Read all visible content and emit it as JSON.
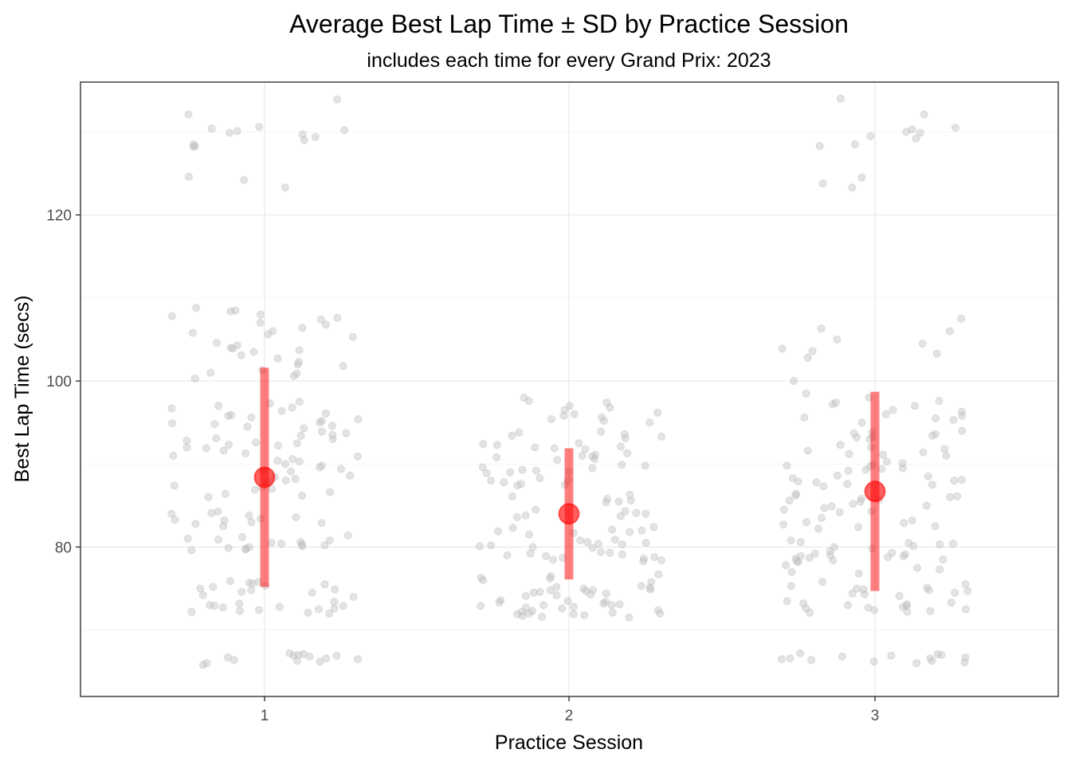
{
  "chart_data": {
    "type": "scatter",
    "title": "Average Best Lap Time ± SD by Practice Session",
    "subtitle": "includes each time for every Grand Prix: 2023",
    "xlabel": "Practice Session",
    "ylabel": "Best Lap Time (secs)",
    "categories": [
      "1",
      "2",
      "3"
    ],
    "y_ticks": [
      "80",
      "100",
      "120"
    ],
    "ylim": [
      62,
      136
    ],
    "grid": true,
    "colors": {
      "points": "#bdbdbd",
      "summary": "#ff0000",
      "panel_border": "#333333"
    },
    "summary": [
      {
        "session": "1",
        "mean": 88.4,
        "sd": 13.2
      },
      {
        "session": "2",
        "mean": 84.0,
        "sd": 7.9
      },
      {
        "session": "3",
        "mean": 86.7,
        "sd": 12.0
      }
    ],
    "observations": [
      {
        "session": "1",
        "laps": [
          66.9,
          66.7,
          67.2,
          66.5,
          67.0,
          66.3,
          65.8,
          66.9,
          67.1,
          66.6,
          66.8,
          66.4,
          66.2,
          66.0,
          72.8,
          72.9,
          73.0,
          72.5,
          72.6,
          72.0,
          72.2,
          72.4,
          72.1,
          73.2,
          72.7,
          72.3,
          72.9,
          73.4,
          75.7,
          74.8,
          75.5,
          74.2,
          75.0,
          75.9,
          74.6,
          75.3,
          74.0,
          75.8,
          74.5,
          75.2,
          75.6,
          74.9,
          80.2,
          79.9,
          80.5,
          80.8,
          80.1,
          79.6,
          80.4,
          81.0,
          80.6,
          79.7,
          80.3,
          80.9,
          81.2,
          79.8,
          80.0,
          81.4,
          83.0,
          83.3,
          84.3,
          82.8,
          83.6,
          84.0,
          83.2,
          82.5,
          83.8,
          84.1,
          82.9,
          83.4,
          87.0,
          86.6,
          88.0,
          86.2,
          87.4,
          88.4,
          86.9,
          87.7,
          88.2,
          86.4,
          87.2,
          88.6,
          86.0,
          87.9,
          89.4,
          90.0,
          91.0,
          89.1,
          90.6,
          91.3,
          89.8,
          90.3,
          91.6,
          89.6,
          90.9,
          89.2,
          91.9,
          90.4,
          92.5,
          93.0,
          92.2,
          93.4,
          92.8,
          93.7,
          92.0,
          93.1,
          92.6,
          93.9,
          92.3,
          93.5,
          94.8,
          95.2,
          94.5,
          95.6,
          94.9,
          95.9,
          94.3,
          96.1,
          95.0,
          95.4,
          96.4,
          94.6,
          95.8,
          96.7,
          97.0,
          97.3,
          96.8,
          97.5,
          100.9,
          101.3,
          100.6,
          101.8,
          102.3,
          100.3,
          102.7,
          101.0,
          102.0,
          103.5,
          104.0,
          103.7,
          104.3,
          103.1,
          104.6,
          103.9,
          105.8,
          106.0,
          105.3,
          106.4,
          105.6,
          106.8,
          107.4,
          108.4,
          107.0,
          108.0,
          108.8,
          107.6,
          108.5,
          107.8,
          123.3,
          124.2,
          124.6,
          128.3,
          128.5,
          128.2,
          129.4,
          129.0,
          129.7,
          130.1,
          130.4,
          130.6,
          130.2,
          129.9,
          132.1,
          133.9
        ]
      },
      {
        "session": "2",
        "laps": [
          71.6,
          72.0,
          71.9,
          72.2,
          71.8,
          72.4,
          71.7,
          72.1,
          72.3,
          71.5,
          72.0,
          71.9,
          73.0,
          72.8,
          73.4,
          73.2,
          72.7,
          73.6,
          73.1,
          72.9,
          73.3,
          73.5,
          72.6,
          73.0,
          74.4,
          74.8,
          75.0,
          74.6,
          74.2,
          75.2,
          74.7,
          74.5,
          74.9,
          75.1,
          74.3,
          74.8,
          75.3,
          74.1,
          76.0,
          76.5,
          76.2,
          75.8,
          76.7,
          76.3,
          78.5,
          78.9,
          79.0,
          78.6,
          79.2,
          78.8,
          79.3,
          78.4,
          79.1,
          78.7,
          79.4,
          78.3,
          80.0,
          80.3,
          80.6,
          79.9,
          80.8,
          80.2,
          80.5,
          80.9,
          80.1,
          80.4,
          81.5,
          81.8,
          82.1,
          82.4,
          81.7,
          82.0,
          82.3,
          81.9,
          83.6,
          84.0,
          84.3,
          83.8,
          84.5,
          84.1,
          83.7,
          85.4,
          85.8,
          86.1,
          85.6,
          86.3,
          85.5,
          87.4,
          87.8,
          88.0,
          87.6,
          88.3,
          87.5,
          88.1,
          88.9,
          89.2,
          89.5,
          89.8,
          89.0,
          89.6,
          89.3,
          89.9,
          89.1,
          90.6,
          91.0,
          90.8,
          91.3,
          90.5,
          91.1,
          90.9,
          92.0,
          92.3,
          91.8,
          92.5,
          92.1,
          91.9,
          92.4,
          93.3,
          93.6,
          93.1,
          93.8,
          93.4,
          93.9,
          95.0,
          95.4,
          95.8,
          96.2,
          95.6,
          96.5,
          95.2,
          96.0,
          97.0,
          97.4,
          96.8,
          97.6,
          98.0
        ]
      },
      {
        "session": "3",
        "laps": [
          66.6,
          66.4,
          67.0,
          66.2,
          66.8,
          66.5,
          67.2,
          66.7,
          66.3,
          66.9,
          66.1,
          66.6,
          66.0,
          67.1,
          72.5,
          72.8,
          73.1,
          72.6,
          72.3,
          73.0,
          72.9,
          72.4,
          73.3,
          72.7,
          73.5,
          72.2,
          73.2,
          72.1,
          74.7,
          75.0,
          74.3,
          75.3,
          74.5,
          74.9,
          74.1,
          75.5,
          74.8,
          75.1,
          74.4,
          75.8,
          77.5,
          77.0,
          77.8,
          77.3,
          76.8,
          78.5,
          78.9,
          79.0,
          78.7,
          78.3,
          79.3,
          78.8,
          79.1,
          78.6,
          78.4,
          79.5,
          78.2,
          79.2,
          78.9,
          80.0,
          80.3,
          80.6,
          79.8,
          80.4,
          80.8,
          80.1,
          80.5,
          82.4,
          82.7,
          83.0,
          82.2,
          83.2,
          82.5,
          82.9,
          83.5,
          84.3,
          84.7,
          85.0,
          84.5,
          84.9,
          84.2,
          85.2,
          85.5,
          85.8,
          86.2,
          85.6,
          86.0,
          86.4,
          85.7,
          86.1,
          87.5,
          87.8,
          88.3,
          87.3,
          88.0,
          88.5,
          87.6,
          88.1,
          88.6,
          87.9,
          89.2,
          89.5,
          89.9,
          89.3,
          89.7,
          90.1,
          89.4,
          89.8,
          90.3,
          91.0,
          91.4,
          91.8,
          91.2,
          92.0,
          91.6,
          91.1,
          92.3,
          93.0,
          93.4,
          93.8,
          93.2,
          93.6,
          94.0,
          93.3,
          93.7,
          95.0,
          95.5,
          96.0,
          95.3,
          95.8,
          96.3,
          95.6,
          96.5,
          97.0,
          97.4,
          98.0,
          98.5,
          97.6,
          97.2,
          100.0,
          102.8,
          103.3,
          103.6,
          103.9,
          104.5,
          105.0,
          106.0,
          106.3,
          107.5,
          123.3,
          123.8,
          124.5,
          128.3,
          128.5,
          129.2,
          129.5,
          129.9,
          130.0,
          130.3,
          130.5,
          132.1,
          134.0
        ]
      }
    ]
  }
}
